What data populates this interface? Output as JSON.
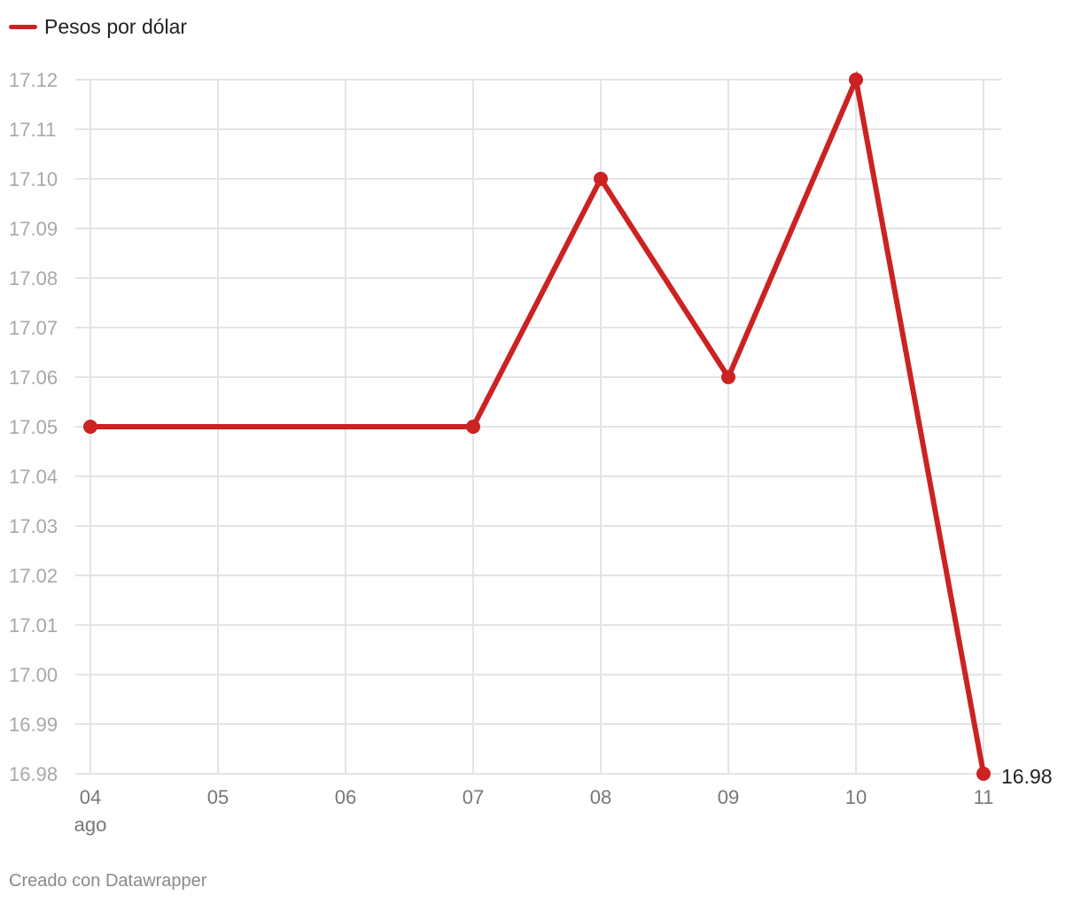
{
  "colors": {
    "series": "#cc2222",
    "grid": "#e4e4e4"
  },
  "footer": "Creado con Datawrapper",
  "chart_data": {
    "type": "line",
    "title": "",
    "xlabel": "",
    "ylabel": "",
    "x": [
      "04",
      "05",
      "06",
      "07",
      "08",
      "09",
      "10",
      "11"
    ],
    "x_sublabel_first": "ago",
    "series": [
      {
        "name": "Pesos por dólar",
        "points": [
          {
            "x": "04",
            "y": 17.05
          },
          {
            "x": "07",
            "y": 17.05
          },
          {
            "x": "08",
            "y": 17.1
          },
          {
            "x": "09",
            "y": 17.06
          },
          {
            "x": "10",
            "y": 17.12
          },
          {
            "x": "11",
            "y": 16.98
          }
        ]
      }
    ],
    "ylim": [
      16.98,
      17.12
    ],
    "yticks": [
      "17.12",
      "17.11",
      "17.10",
      "17.09",
      "17.08",
      "17.07",
      "17.06",
      "17.05",
      "17.04",
      "17.03",
      "17.02",
      "17.01",
      "17.00",
      "16.99",
      "16.98"
    ],
    "data_labels": [
      {
        "x": "11",
        "text": "16.98"
      }
    ],
    "grid": true,
    "legend": "top-left"
  }
}
